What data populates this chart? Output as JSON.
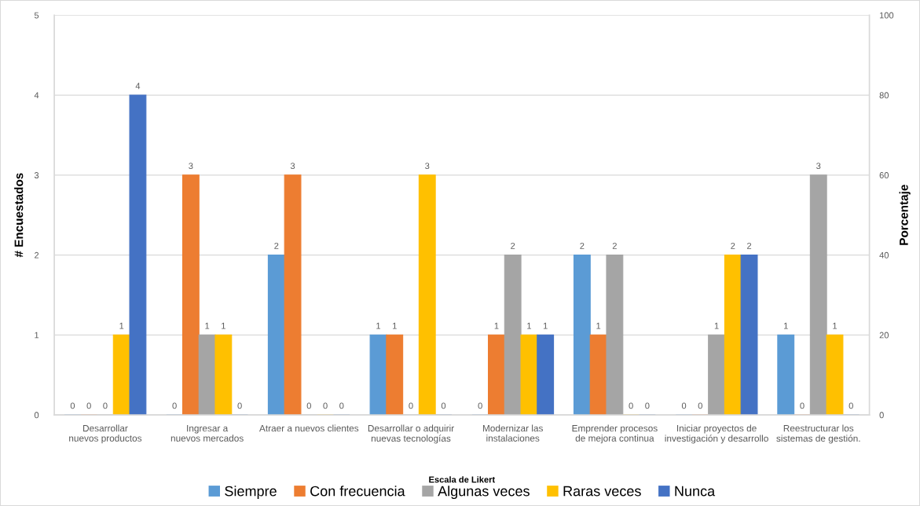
{
  "chart_data": {
    "type": "bar",
    "xlabel": "Escala de Likert",
    "ylabel": "# Encuestados",
    "y2label": "Porcentaje",
    "categories": [
      "Desarrollar nuevos productos",
      "Ingresar a nuevos mercados",
      "Atraer a nuevos clientes",
      "Desarrollar o adquirir nuevas tecnologías",
      "Modernizar las instalaciones",
      "Emprender procesos de mejora continua",
      "Iniciar proyectos de investigación y desarrollo",
      "Reestructurar los sistemas de gestión."
    ],
    "series": [
      {
        "name": "Siempre",
        "color": "#5b9bd5",
        "values": [
          0,
          0,
          2,
          1,
          0,
          2,
          0,
          1
        ]
      },
      {
        "name": "Con frecuencia",
        "color": "#ed7d31",
        "values": [
          0,
          3,
          3,
          1,
          1,
          1,
          0,
          0
        ]
      },
      {
        "name": "Algunas veces",
        "color": "#a5a5a5",
        "values": [
          0,
          1,
          0,
          0,
          2,
          2,
          1,
          3
        ]
      },
      {
        "name": "Raras veces",
        "color": "#ffc000",
        "values": [
          1,
          1,
          0,
          3,
          1,
          0,
          2,
          1
        ]
      },
      {
        "name": "Nunca",
        "color": "#4472c4",
        "values": [
          4,
          0,
          0,
          0,
          1,
          0,
          2,
          0
        ]
      }
    ],
    "ylim": [
      0,
      5
    ],
    "yticks": [
      0,
      1,
      2,
      3,
      4,
      5
    ],
    "y2lim": [
      0,
      100
    ],
    "y2ticks": [
      0,
      20,
      40,
      60,
      80,
      100
    ],
    "grid": "y",
    "legend": "bottom",
    "data_labels": true
  }
}
